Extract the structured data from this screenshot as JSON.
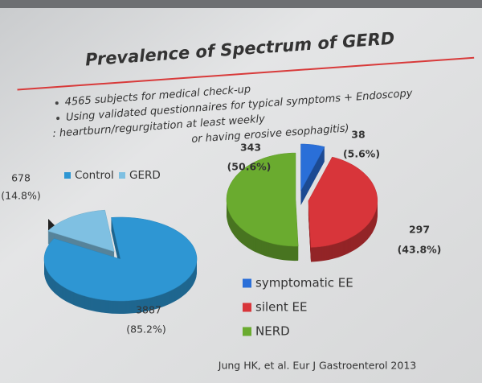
{
  "slide": {
    "title": "Prevalence of Spectrum of GERD",
    "bullets": [
      "4565 subjects for medical check-up",
      "Using validated questionnaires for typical symptoms + Endoscopy",
      ": heartburn/regurgitation at least weekly",
      "or having erosive esophagitis)"
    ],
    "citation": "Jung HK, et al. Eur J Gastroenterol 2013"
  },
  "chart_data": [
    {
      "type": "pie",
      "categories": [
        "Control",
        "GERD"
      ],
      "values": [
        3887,
        678
      ],
      "shares": [
        85.2,
        14.8
      ],
      "share_labels": [
        "(85.2%)",
        "(14.8%)"
      ],
      "colors": [
        "#2e96d3",
        "#7fc0e2"
      ]
    },
    {
      "type": "pie",
      "categories": [
        "symptomatic EE",
        "silent EE",
        "NERD"
      ],
      "values": [
        38,
        297,
        343
      ],
      "shares": [
        5.6,
        43.8,
        50.6
      ],
      "share_labels": [
        "(5.6%)",
        "(43.8%)",
        "(50.6%)"
      ],
      "colors": [
        "#2a6fd8",
        "#d8353a",
        "#6aab2f"
      ]
    }
  ]
}
